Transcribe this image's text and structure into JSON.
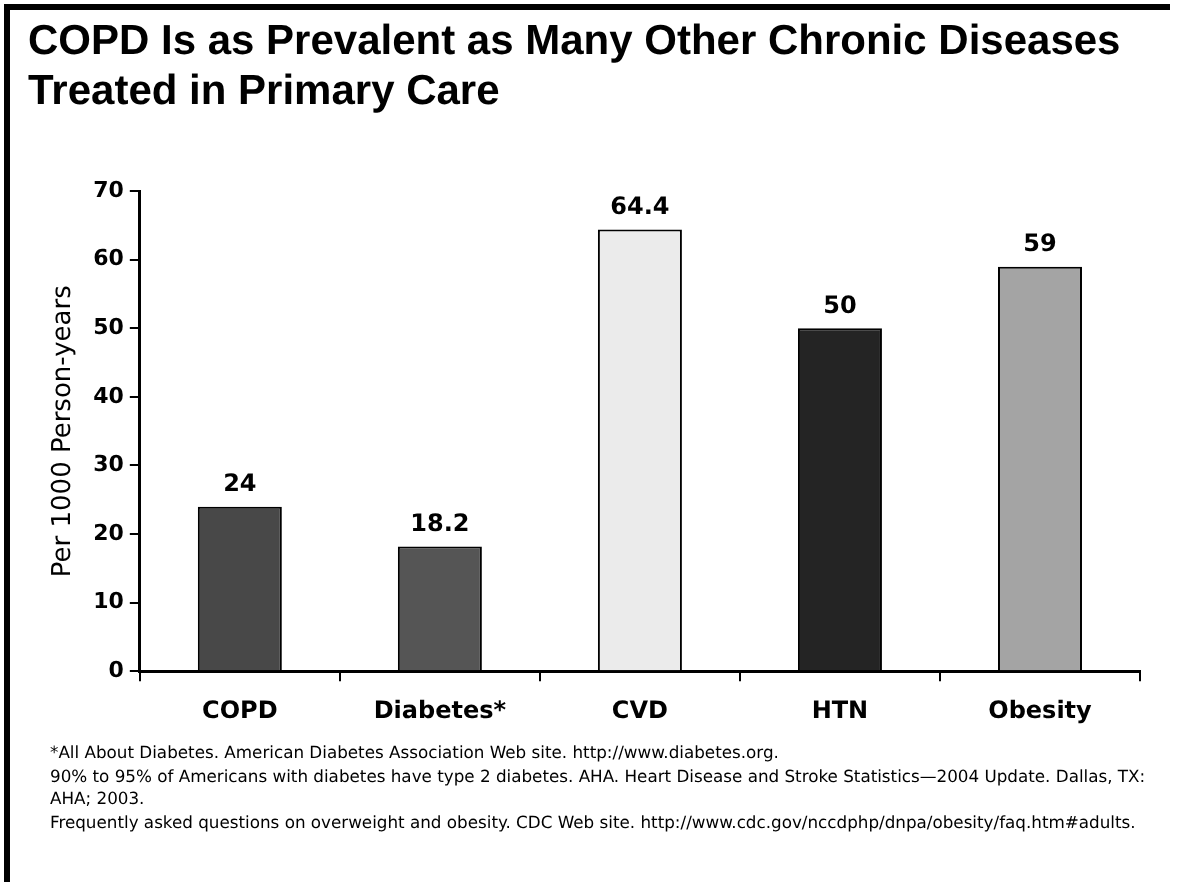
{
  "chart_data": {
    "type": "bar",
    "title": "COPD Is as Prevalent as Many Other Chronic Diseases Treated in Primary Care",
    "ylabel": "Per 1000 Person-years",
    "categories": [
      "COPD",
      "Diabetes*",
      "CVD",
      "HTN",
      "Obesity"
    ],
    "values": [
      24,
      18.2,
      64.4,
      50,
      59
    ],
    "colors": [
      "#484848",
      "#555555",
      "#ebebeb",
      "#242424",
      "#a4a4a4"
    ],
    "ylim": [
      0,
      70
    ],
    "yticks": [
      0,
      10,
      20,
      30,
      40,
      50,
      60,
      70
    ],
    "grid": false,
    "legend": false,
    "data_labels": true,
    "annotations": [
      "*All About Diabetes. American Diabetes Association Web site. http://www.diabetes.org.",
      "90% to 95% of Americans with diabetes have type 2 diabetes. AHA. Heart Disease and Stroke Statistics—2004 Update. Dallas, TX: AHA; 2003.",
      "Frequently asked questions on overweight and obesity. CDC Web site. http://www.cdc.gov/nccdphp/dnpa/obesity/faq.htm#adults."
    ]
  }
}
